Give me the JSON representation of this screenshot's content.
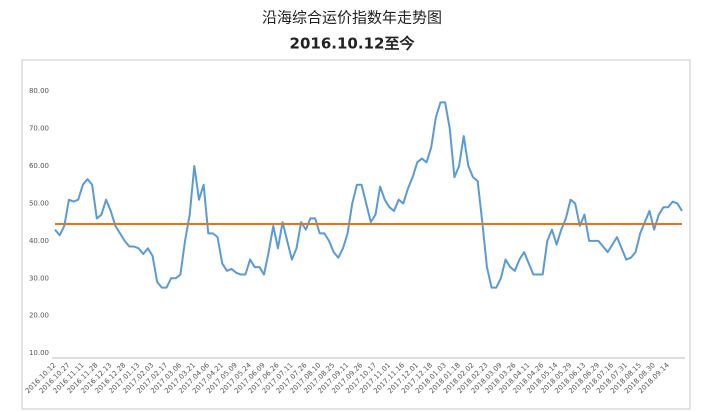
{
  "chart_data": {
    "type": "line",
    "title": "沿海综合运价指数年走势图",
    "subtitle": "2016.10.12至今",
    "categories": [
      "2016.10.12",
      null,
      null,
      "2016.10.27",
      null,
      null,
      "2016.11.11",
      null,
      null,
      "2016.11.28",
      null,
      null,
      "2016.12.13",
      null,
      null,
      "2016.12.28",
      null,
      null,
      "2017.01.13",
      null,
      null,
      "2017.02.03",
      null,
      null,
      "2017.02.17",
      null,
      null,
      "2017.03.06",
      null,
      null,
      "2017.03.21",
      null,
      null,
      "2017.04.06",
      null,
      null,
      "2017.04.21",
      null,
      null,
      "2017.05.09",
      null,
      null,
      "2017.05.24",
      null,
      null,
      "2017.06.09",
      null,
      null,
      "2017.06.26",
      null,
      null,
      "2017.07.11",
      null,
      null,
      "2017.07.26",
      null,
      null,
      "2017.08.10",
      null,
      null,
      "2017.08.25",
      null,
      null,
      "2017.09.11",
      null,
      null,
      "2017.09.26",
      null,
      null,
      "2017.10.17",
      null,
      null,
      "2017.11.01",
      null,
      null,
      "2017.11.16",
      null,
      null,
      "2017.12.01",
      null,
      null,
      "2017.12.18",
      null,
      null,
      "2018.01.03",
      null,
      null,
      "2018.01.18",
      null,
      null,
      "2018.02.02",
      null,
      null,
      "2018.02.23",
      null,
      null,
      "2018.03.09",
      null,
      null,
      "2018.03.26",
      null,
      null,
      "2018.04.11",
      null,
      null,
      "2018.04.26",
      null,
      null,
      "2018.05.14",
      null,
      null,
      "2018.05.29",
      null,
      null,
      "2018.06.13",
      null,
      null,
      "2018.06.29",
      null,
      null,
      "2018.07.16",
      null,
      null,
      "2018.07.31",
      null,
      null,
      "2018.08.15",
      null,
      null,
      "2018.08.30",
      null,
      null,
      "2018.09.14",
      null,
      null,
      null
    ],
    "series": [
      {
        "color": "#5a9bd4",
        "values": [
          43,
          41.5,
          44,
          51,
          50.5,
          51,
          55,
          56.5,
          55,
          46,
          47,
          51,
          48,
          44,
          42,
          40,
          38.5,
          38.5,
          38,
          36.5,
          38,
          36,
          29,
          27.5,
          27.5,
          30,
          30,
          31,
          40,
          47,
          60,
          51,
          55,
          42,
          42,
          41,
          34,
          32,
          32.5,
          31.5,
          31,
          31,
          35,
          33,
          33,
          31,
          37,
          44,
          38,
          45,
          40,
          35,
          38,
          45,
          43,
          46,
          46,
          42,
          42,
          40,
          37,
          35.5,
          38,
          42,
          50,
          55,
          55,
          50,
          45,
          47,
          54.5,
          51,
          49,
          48,
          51,
          50,
          54,
          57,
          61,
          62,
          61,
          65,
          73,
          77,
          77,
          70,
          57,
          60,
          68,
          60,
          57,
          56,
          45,
          33,
          27.5,
          27.5,
          30,
          35,
          33,
          32,
          35,
          37,
          34,
          31,
          31,
          31,
          40,
          43,
          39,
          43,
          46,
          51,
          50,
          44,
          47,
          40,
          40,
          40,
          38.5,
          37,
          39,
          41,
          38,
          35,
          35.5,
          37,
          42,
          45,
          48,
          43,
          47,
          49,
          49,
          50.5,
          50,
          48
        ]
      }
    ],
    "reference_line": {
      "value": 44.5,
      "color": "#e8731a"
    },
    "ylim": [
      8.7,
      87.8
    ],
    "yticks": [
      {
        "value": 10,
        "label": "10.00"
      },
      {
        "value": 20,
        "label": "20.00"
      },
      {
        "value": 30,
        "label": "30.00"
      },
      {
        "value": 40,
        "label": "40.00"
      },
      {
        "value": 50,
        "label": "50.00"
      },
      {
        "value": 60,
        "label": "60.00"
      },
      {
        "value": 70,
        "label": "70.00"
      },
      {
        "value": 80,
        "label": "80.00"
      }
    ],
    "grid": false
  }
}
